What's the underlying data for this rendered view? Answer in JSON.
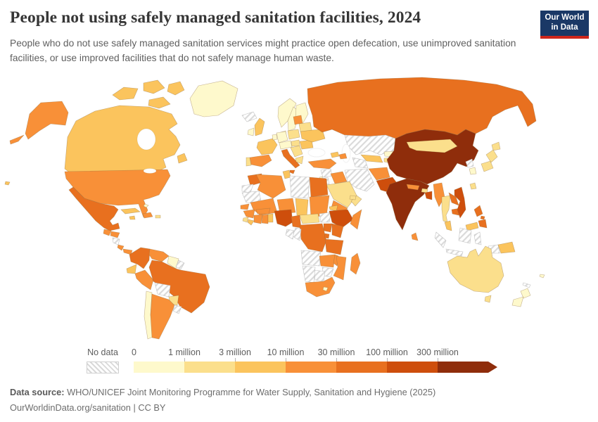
{
  "header": {
    "title": "People not using safely managed sanitation facilities, 2024",
    "subtitle": "People who do not use safely managed sanitation services might practice open defecation, use unimproved sanitation facilities, or use improved facilities that do not safely manage human waste.",
    "logo": {
      "line1": "Our World",
      "line2": "in Data",
      "bg_color": "#1A3866",
      "accent_color": "#CE261B"
    }
  },
  "footer": {
    "source_label": "Data source:",
    "source_text": " WHO/UNICEF Joint Monitoring Programme for Water Supply, Sanitation and Hygiene (2025)",
    "license_line": "OurWorldinData.org/sanitation | CC BY"
  },
  "chart_data": {
    "type": "choropleth-map",
    "title": "People not using safely managed sanitation facilities, 2024",
    "year": "2024",
    "unit": "people",
    "legend_position": "bottom",
    "no_data_label": "No data",
    "tick_labels": [
      "0",
      "1 million",
      "3 million",
      "10 million",
      "30 million",
      "100 million",
      "300 million"
    ],
    "bins": [
      {
        "label": "0 – 1 million",
        "color": "#FEF9CC"
      },
      {
        "label": "1 – 3 million",
        "color": "#FBDF8C"
      },
      {
        "label": "3 – 10 million",
        "color": "#FBC45D"
      },
      {
        "label": "10 – 30 million",
        "color": "#F89038"
      },
      {
        "label": "30 – 100 million",
        "color": "#E8701F"
      },
      {
        "label": "100 – 300 million",
        "color": "#CE4E0C"
      },
      {
        "label": "300 million +",
        "color": "#8F2D0B"
      }
    ],
    "countries": {
      "greenland": 0,
      "canada": 2,
      "canadian-arctic": 2,
      "alaska": 3,
      "usa": 3,
      "hawaii": 2,
      "mexico": 4,
      "cuba": 2,
      "hispaniola": 3,
      "jamaica": 2,
      "puerto-rico": 1,
      "bahamas": 0,
      "guatemala": 3,
      "honduras": 3,
      "nicaragua": "no-data",
      "costa-rica": 3,
      "panama": 3,
      "colombia": 4,
      "venezuela": 3,
      "guyana-suriname": 0,
      "french-guiana": "no-data",
      "ecuador": 2,
      "peru": 3,
      "brazil": 4,
      "bolivia": "no-data",
      "paraguay": 1,
      "chile": 0,
      "argentina": 3,
      "uruguay": "no-data",
      "falkland": "no-data",
      "iceland": "no-data",
      "norway": 0,
      "sweden": 0,
      "finland": 0,
      "denmark": 0,
      "uk": 2,
      "ireland": 0,
      "france": 2,
      "spain": 3,
      "portugal": 1,
      "germany": 0,
      "benelux": 0,
      "poland": 1,
      "czech-austria": 0,
      "italy": 4,
      "sicily": 4,
      "balkans": 1,
      "greece": 1,
      "romania": 2,
      "hungary": 1,
      "ukraine": 2,
      "belarus": 1,
      "baltics": 3,
      "russia": 4,
      "turkey": 3,
      "georgia": 2,
      "azerbaijan": 3,
      "syria": "no-data",
      "iraq": 3,
      "jordan": "no-data",
      "israel": 0,
      "saudi-arabia": 1,
      "yemen": 3,
      "oman": 1,
      "uae": 1,
      "iran": "no-data",
      "kazakhstan": "no-data",
      "uzbekistan": 2,
      "turkmenistan": "no-data",
      "kyrgyzstan": 0,
      "tajikistan": 1,
      "afghanistan": 3,
      "pakistan": 5,
      "india": 6,
      "nepal": 3,
      "bhutan": 1,
      "bangladesh": 5,
      "sri-lanka": 3,
      "china": 6,
      "mongolia": 1,
      "taiwan": 1,
      "north-korea": "no-data",
      "south-korea": 0,
      "japan-hokkaido": 1,
      "japan-honshu": 1,
      "japan-south": 1,
      "myanmar": 3,
      "thailand": 1,
      "laos": 4,
      "cambodia": 4,
      "vietnam": 5,
      "malaysia": 2,
      "malaysia-borneo": 2,
      "sumatra": "no-data",
      "java": "no-data",
      "kalimantan": "no-data",
      "sulawesi": "no-data",
      "lesser-sunda": "no-data",
      "west-papua": "no-data",
      "timor": "no-data",
      "philippines-luzon": 4,
      "philippines-visayas": 4,
      "philippines-mindanao": 4,
      "morocco": 4,
      "western-sahara": "no-data",
      "algeria": 3,
      "tunisia": 2,
      "libya": "no-data",
      "egypt": 4,
      "mauritania": "no-data",
      "mali": 3,
      "niger": 3,
      "chad": 2,
      "sudan": 3,
      "eritrea": 2,
      "senegal": 3,
      "guinea": 3,
      "sierra-leone": 1,
      "liberia": 2,
      "ivory-coast": 3,
      "ghana": 3,
      "togo-benin": 2,
      "burkina": 3,
      "nigeria": 5,
      "cameroon": 4,
      "car": 1,
      "south-sudan": "no-data",
      "ethiopia": 5,
      "somalia": 3,
      "kenya": 4,
      "uganda": 4,
      "drc": 4,
      "congo": "no-data",
      "gabon": "no-data",
      "rwanda-burundi": 4,
      "tanzania": 4,
      "angola": "no-data",
      "zambia": 3,
      "malawi": 3,
      "mozambique": 3,
      "zimbabwe": "no-data",
      "botswana": "no-data",
      "namibia": "no-data",
      "south-africa": 3,
      "lesotho": 0,
      "madagascar": 3,
      "australia": 1,
      "tasmania": 1,
      "papua-new-guinea": 2,
      "fiji": 0,
      "new-caledonia": "no-data",
      "nz-north": 0,
      "nz-south": 0
    }
  }
}
